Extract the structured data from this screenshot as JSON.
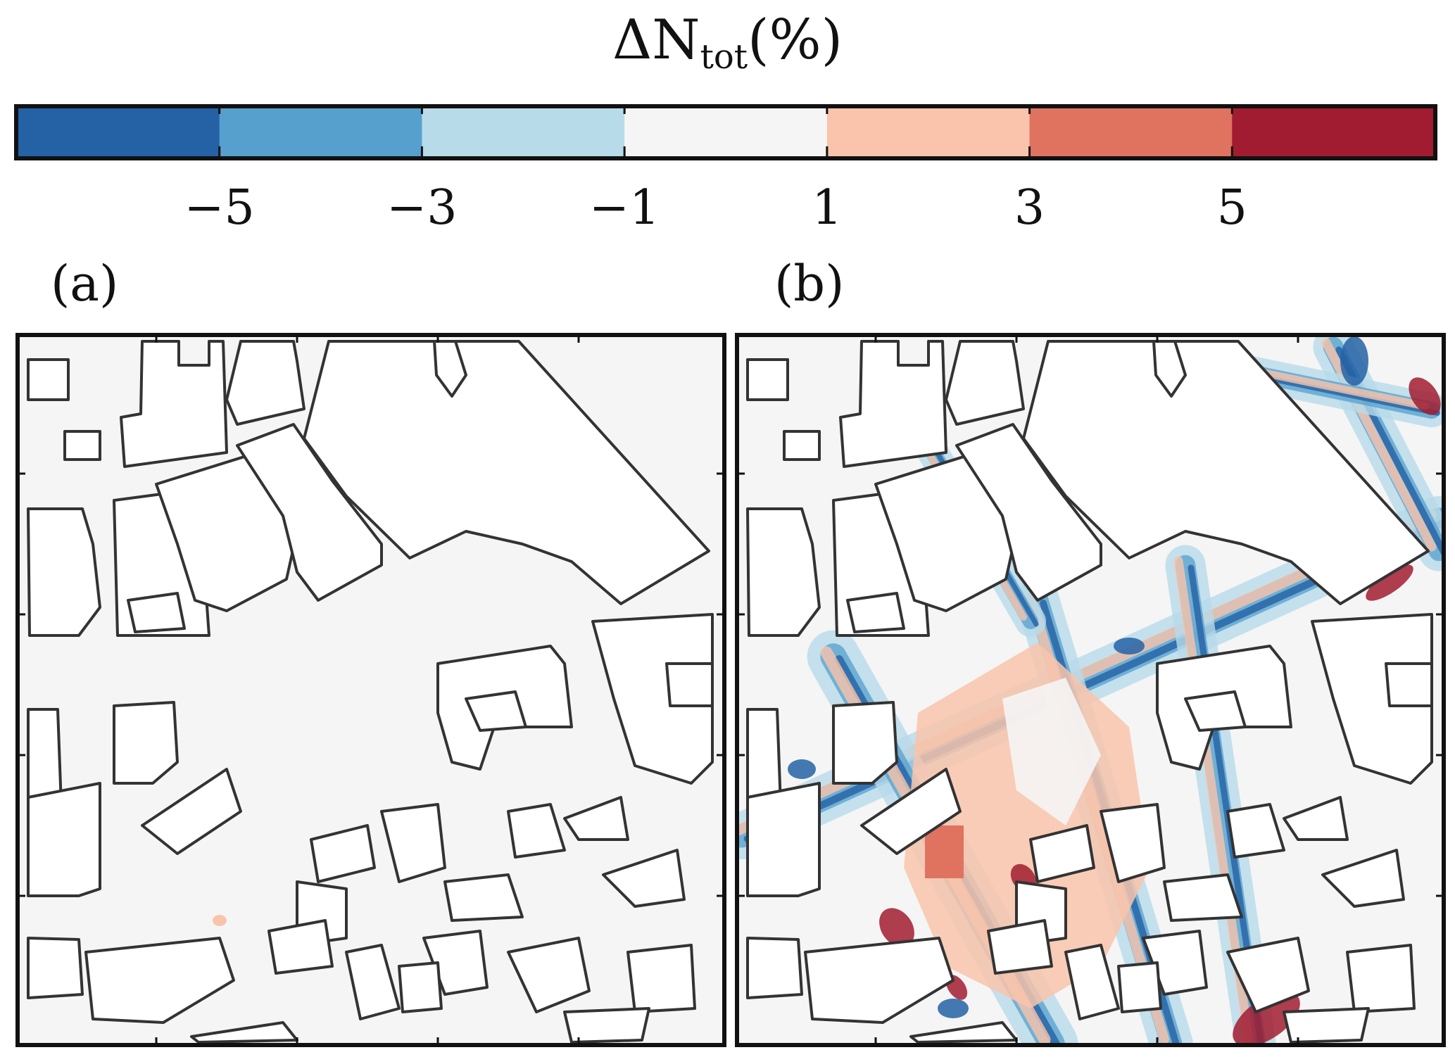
{
  "chart_data": {
    "type": "heatmap",
    "title": "ΔN",
    "title_subscript": "tot",
    "title_suffix": "(%)",
    "colorbar": {
      "bins": [
        {
          "from": -7,
          "to": -5,
          "color": "#2462a5"
        },
        {
          "from": -5,
          "to": -3,
          "color": "#56a0ce"
        },
        {
          "from": -3,
          "to": -1,
          "color": "#b8dbea"
        },
        {
          "from": -1,
          "to": 1,
          "color": "#f5f5f5"
        },
        {
          "from": 1,
          "to": 3,
          "color": "#f9c4ab"
        },
        {
          "from": 3,
          "to": 5,
          "color": "#e07360"
        },
        {
          "from": 5,
          "to": 7,
          "color": "#a11c30"
        }
      ],
      "range": [
        -7,
        7
      ],
      "ticks": [
        -5,
        -3,
        -1,
        1,
        3,
        5
      ],
      "tick_labels": [
        "−5",
        "−3",
        "−1",
        "1",
        "3",
        "5"
      ]
    },
    "panels": [
      {
        "label": "(a)",
        "description_mode": "near-zero change everywhere"
      },
      {
        "label": "(b)",
        "description_mode": "street-level positive and negative changes"
      }
    ]
  },
  "colors": {
    "frame": "#111111",
    "building_outline": "#333333",
    "building_fill": "#ffffff",
    "background_field": "#f5f5f5"
  }
}
